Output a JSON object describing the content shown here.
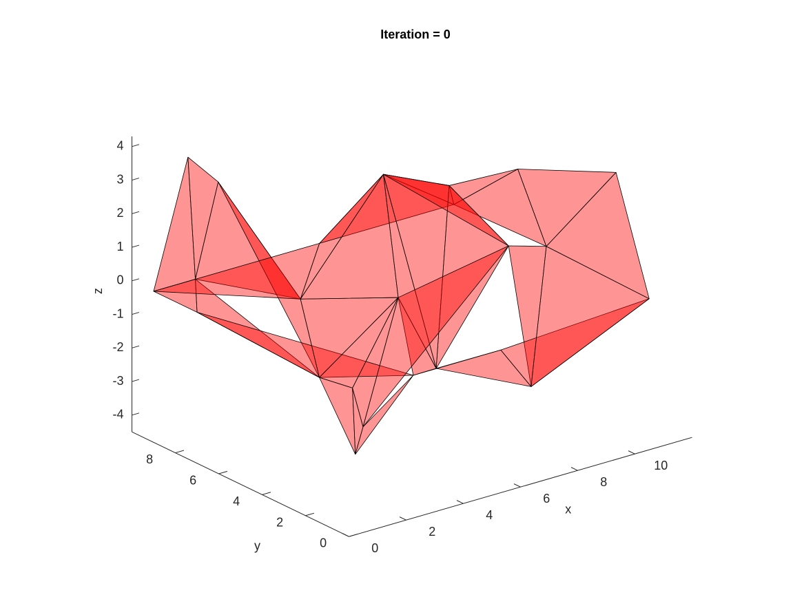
{
  "chart_data": {
    "type": "surface3d",
    "title": "Iteration = 0",
    "xlabel": "x",
    "ylabel": "y",
    "zlabel": "z",
    "xlim": [
      0,
      12
    ],
    "ylim": [
      0,
      10
    ],
    "zlim": [
      -4.5,
      4.3
    ],
    "xticks": [
      0,
      2,
      4,
      6,
      8,
      10
    ],
    "yticks": [
      0,
      2,
      4,
      6,
      8
    ],
    "zticks": [
      -4,
      -3,
      -2,
      -1,
      0,
      1,
      2,
      3,
      4
    ],
    "color": "#ff0000",
    "triangles": [
      {
        "x": [
          0,
          1.2,
          0.7
        ],
        "y": [
          9,
          9,
          8
        ],
        "z": [
          0,
          3.7,
          0.5
        ]
      },
      {
        "x": [
          1.2,
          1.5,
          0.7
        ],
        "y": [
          9,
          8,
          8
        ],
        "z": [
          3.7,
          3.2,
          0.5
        ]
      },
      {
        "x": [
          1.5,
          0.7,
          2.1
        ],
        "y": [
          8,
          8,
          5
        ],
        "z": [
          3.2,
          0.5,
          0.5
        ]
      },
      {
        "x": [
          1.5,
          2.1,
          2
        ],
        "y": [
          8,
          5,
          4
        ],
        "z": [
          3.2,
          0.5,
          -1.5
        ]
      },
      {
        "x": [
          0.7,
          0,
          2
        ],
        "y": [
          8,
          7,
          4
        ],
        "z": [
          0.5,
          0,
          -1.5
        ]
      },
      {
        "x": [
          0,
          0.7,
          0
        ],
        "y": [
          9,
          8,
          7
        ],
        "z": [
          0,
          0.5,
          0
        ]
      },
      {
        "x": [
          2,
          2.4,
          2.5
        ],
        "y": [
          4,
          3,
          3
        ],
        "z": [
          -1.5,
          -1.6,
          -3.6
        ]
      },
      {
        "x": [
          2.4,
          2.5,
          2.77
        ],
        "y": [
          3,
          3,
          3
        ],
        "z": [
          -1.6,
          -3.6,
          -2.85
        ]
      },
      {
        "x": [
          2.4,
          4,
          2.77
        ],
        "y": [
          3,
          3,
          3
        ],
        "z": [
          -1.6,
          0.7,
          -2.85
        ]
      },
      {
        "x": [
          2.5,
          2.77,
          2.25
        ],
        "y": [
          3,
          3,
          0
        ],
        "z": [
          -3.6,
          -2.85,
          -0.25
        ]
      },
      {
        "x": [
          0,
          2,
          2.25
        ],
        "y": [
          7,
          4,
          0
        ],
        "z": [
          0,
          -1.5,
          -0.25
        ]
      },
      {
        "x": [
          0,
          5.8,
          2.1
        ],
        "y": [
          9,
          9,
          5
        ],
        "z": [
          0,
          0,
          0.5
        ]
      },
      {
        "x": [
          2.1,
          5.8,
          5
        ],
        "y": [
          5,
          9,
          5
        ],
        "z": [
          0.5,
          0,
          3.5
        ]
      },
      {
        "x": [
          5.8,
          10.5,
          5
        ],
        "y": [
          9,
          9,
          5
        ],
        "z": [
          0,
          0,
          3.5
        ]
      },
      {
        "x": [
          5,
          10.5,
          7.3
        ],
        "y": [
          5,
          9,
          5
        ],
        "z": [
          3.5,
          0,
          2.6
        ]
      },
      {
        "x": [
          7.3,
          10.5,
          9.7
        ],
        "y": [
          5,
          9,
          5
        ],
        "z": [
          2.6,
          0,
          2.5
        ]
      },
      {
        "x": [
          10.5,
          9.7,
          9.18
        ],
        "y": [
          9,
          5,
          3
        ],
        "z": [
          0,
          2.5,
          0.95
        ]
      },
      {
        "x": [
          9.18,
          9.7,
          10.1
        ],
        "y": [
          3,
          5,
          1
        ],
        "z": [
          0.95,
          2.5,
          3.55
        ]
      },
      {
        "x": [
          9.18,
          10.1,
          10.5
        ],
        "y": [
          3,
          1,
          0
        ],
        "z": [
          0.95,
          3.55,
          0
        ]
      },
      {
        "x": [
          2.1,
          2,
          4
        ],
        "y": [
          5,
          4,
          3
        ],
        "z": [
          0.5,
          -1.5,
          0.7
        ]
      },
      {
        "x": [
          2.1,
          4,
          5
        ],
        "y": [
          5,
          3,
          5
        ],
        "z": [
          0.5,
          0.7,
          3.5
        ]
      },
      {
        "x": [
          2,
          2.4,
          4
        ],
        "y": [
          4,
          3,
          3
        ],
        "z": [
          -1.5,
          -1.6,
          0.7
        ]
      },
      {
        "x": [
          4,
          5,
          4.57
        ],
        "y": [
          3,
          5,
          2
        ],
        "z": [
          0.7,
          3.5,
          -1.24
        ]
      },
      {
        "x": [
          5,
          7.3,
          4.57
        ],
        "y": [
          5,
          5,
          2
        ],
        "z": [
          3.5,
          2.6,
          -1.24
        ]
      },
      {
        "x": [
          7.3,
          7.86,
          4.57
        ],
        "y": [
          5,
          3,
          2
        ],
        "z": [
          2.6,
          1.29,
          -1.24
        ]
      },
      {
        "x": [
          5,
          7.86,
          7.3
        ],
        "y": [
          5,
          3,
          5
        ],
        "z": [
          3.5,
          1.29,
          2.6
        ]
      },
      {
        "x": [
          7.86,
          7.13,
          9.18
        ],
        "y": [
          3,
          1,
          3
        ],
        "z": [
          1.29,
          -2.1,
          0.95
        ]
      },
      {
        "x": [
          7.13,
          5.31,
          4.57
        ],
        "y": [
          1,
          0,
          2
        ],
        "z": [
          -2.1,
          -0.25,
          -1.24
        ]
      },
      {
        "x": [
          5.31,
          10.5,
          7.13
        ],
        "y": [
          0,
          0,
          1
        ],
        "z": [
          -0.25,
          0,
          -2.1
        ]
      },
      {
        "x": [
          10.5,
          9.18,
          7.13
        ],
        "y": [
          0,
          3,
          1
        ],
        "z": [
          0,
          0.95,
          -2.1
        ]
      },
      {
        "x": [
          2.25,
          4,
          4.57
        ],
        "y": [
          0,
          3,
          2
        ],
        "z": [
          -0.25,
          0.7,
          -1.24
        ]
      },
      {
        "x": [
          2.25,
          4.57,
          5.31
        ],
        "y": [
          0,
          2,
          0
        ],
        "z": [
          -0.25,
          -1.24,
          -0.25
        ]
      },
      {
        "x": [
          4,
          7.86,
          2.77
        ],
        "y": [
          3,
          3,
          3
        ],
        "z": [
          0.7,
          1.29,
          -2.85
        ]
      }
    ]
  }
}
